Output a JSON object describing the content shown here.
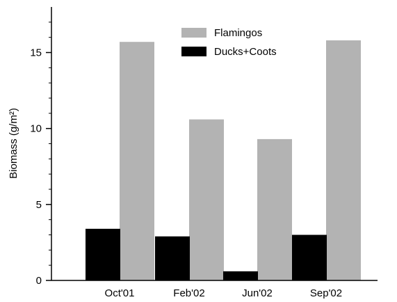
{
  "chart_data": {
    "type": "bar",
    "categories": [
      "Oct'01",
      "Feb'02",
      "Jun'02",
      "Sep'02"
    ],
    "series": [
      {
        "name": "Ducks+Coots",
        "values": [
          3.4,
          2.9,
          0.6,
          3.0
        ],
        "color": "#000000"
      },
      {
        "name": "Flamingos",
        "values": [
          15.7,
          10.6,
          9.3,
          15.8
        ],
        "color": "#b3b3b3"
      }
    ],
    "title": "",
    "xlabel": "",
    "ylabel": "Biomass (g/m²)",
    "ylim": [
      0,
      18
    ],
    "yticks": [
      0,
      5,
      10,
      15
    ],
    "grid": false,
    "legend_position": "top-center"
  }
}
